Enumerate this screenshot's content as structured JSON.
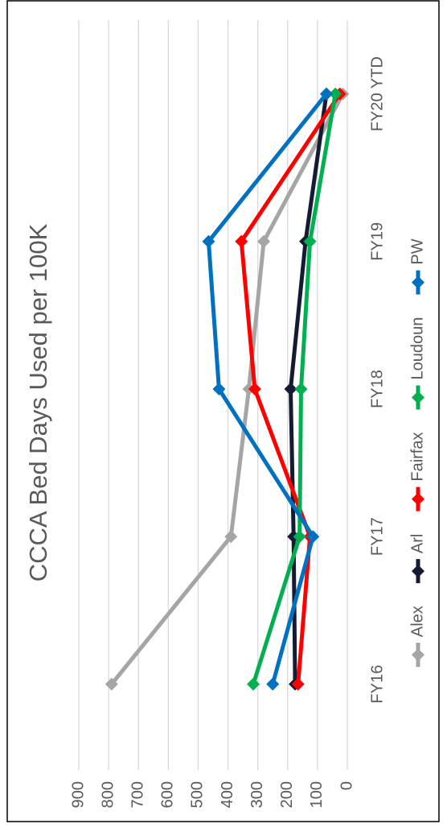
{
  "chart_data": {
    "type": "line",
    "title": "CCCA Bed Days Used per 100K",
    "categories": [
      "FY16",
      "FY17",
      "FY18",
      "FY19",
      "FY20 YTD"
    ],
    "series": [
      {
        "name": "Alex",
        "color": "#a5a5a5",
        "values": [
          790,
          390,
          330,
          280,
          15
        ]
      },
      {
        "name": "Arl",
        "color": "#141c33",
        "values": [
          175,
          180,
          190,
          140,
          70
        ]
      },
      {
        "name": "Fairfax",
        "color": "#ff0000",
        "values": [
          165,
          125,
          310,
          355,
          25
        ]
      },
      {
        "name": "Loudoun",
        "color": "#00b050",
        "values": [
          315,
          160,
          155,
          125,
          40
        ]
      },
      {
        "name": "PW",
        "color": "#0070c0",
        "values": [
          250,
          115,
          430,
          465,
          70
        ]
      }
    ],
    "ylim": [
      0,
      900
    ],
    "yticks": [
      0,
      100,
      200,
      300,
      400,
      500,
      600,
      700,
      800,
      900
    ],
    "grid": true,
    "legend": "bottom"
  }
}
